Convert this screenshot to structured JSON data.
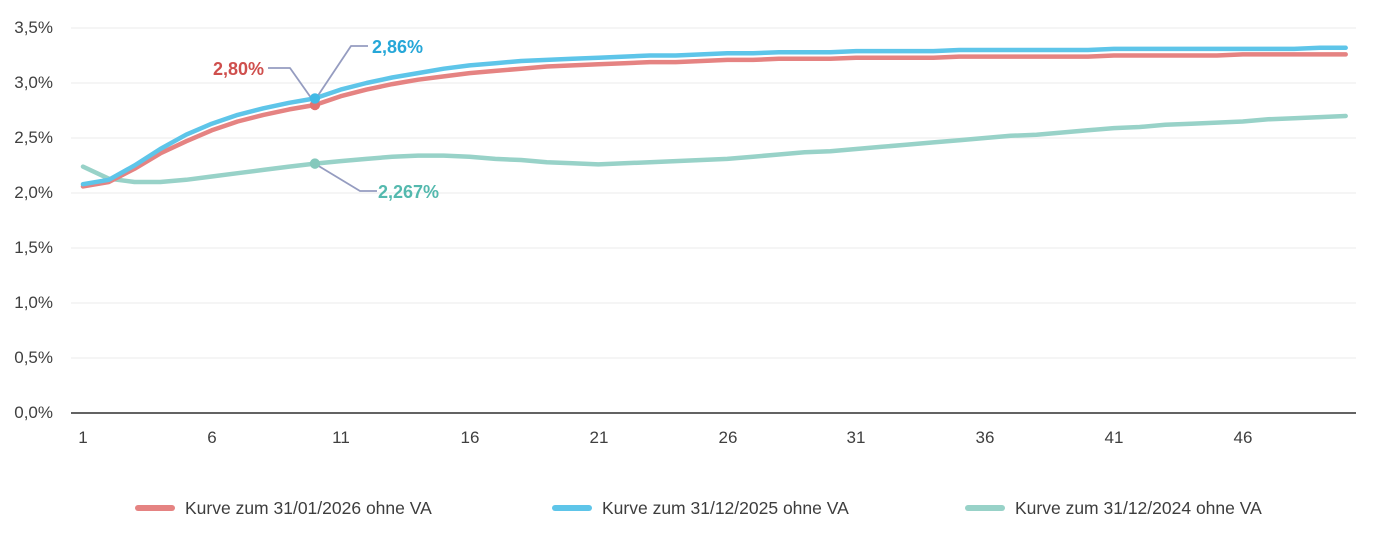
{
  "chart_data": {
    "type": "line",
    "title": "",
    "xlabel": "",
    "ylabel": "",
    "x": [
      1,
      2,
      3,
      4,
      5,
      6,
      7,
      8,
      9,
      10,
      11,
      12,
      13,
      14,
      15,
      16,
      17,
      18,
      19,
      20,
      21,
      22,
      23,
      24,
      25,
      26,
      27,
      28,
      29,
      30,
      31,
      32,
      33,
      34,
      35,
      36,
      37,
      38,
      39,
      40,
      41,
      42,
      43,
      44,
      45,
      46,
      47,
      48,
      49,
      50
    ],
    "xlim": [
      1,
      50
    ],
    "ylim": [
      0,
      3.5
    ],
    "grid": true,
    "legend_position": "bottom",
    "xticks": [
      "1",
      "6",
      "11",
      "16",
      "21",
      "26",
      "31",
      "36",
      "41",
      "46"
    ],
    "xtick_values": [
      1,
      6,
      11,
      16,
      21,
      26,
      31,
      36,
      41,
      46
    ],
    "yticks": [
      "3,5%",
      "3,0%",
      "2,5%",
      "2,0%",
      "1,5%",
      "1,0%",
      "0,5%",
      "0,0%"
    ],
    "ytick_values": [
      3.5,
      3.0,
      2.5,
      2.0,
      1.5,
      1.0,
      0.5,
      0.0
    ],
    "series": [
      {
        "name": "Kurve zum 31/01/2026 ohne VA",
        "color": "#e58382",
        "marker_color": "#e2716f",
        "values": [
          2.06,
          2.1,
          2.22,
          2.36,
          2.47,
          2.57,
          2.65,
          2.71,
          2.76,
          2.8,
          2.88,
          2.94,
          2.99,
          3.03,
          3.06,
          3.09,
          3.11,
          3.13,
          3.15,
          3.16,
          3.17,
          3.18,
          3.19,
          3.19,
          3.2,
          3.21,
          3.21,
          3.22,
          3.22,
          3.22,
          3.23,
          3.23,
          3.23,
          3.23,
          3.24,
          3.24,
          3.24,
          3.24,
          3.24,
          3.24,
          3.25,
          3.25,
          3.25,
          3.25,
          3.25,
          3.26,
          3.26,
          3.26,
          3.26,
          3.26
        ]
      },
      {
        "name": "Kurve zum 31/12/2025 ohne VA",
        "color": "#5ec5e9",
        "marker_color": "#41b9e5",
        "values": [
          2.08,
          2.12,
          2.25,
          2.4,
          2.53,
          2.63,
          2.71,
          2.77,
          2.82,
          2.86,
          2.94,
          3.0,
          3.05,
          3.09,
          3.13,
          3.16,
          3.18,
          3.2,
          3.21,
          3.22,
          3.23,
          3.24,
          3.25,
          3.25,
          3.26,
          3.27,
          3.27,
          3.28,
          3.28,
          3.28,
          3.29,
          3.29,
          3.29,
          3.29,
          3.3,
          3.3,
          3.3,
          3.3,
          3.3,
          3.3,
          3.31,
          3.31,
          3.31,
          3.31,
          3.31,
          3.31,
          3.31,
          3.31,
          3.32,
          3.32
        ]
      },
      {
        "name": "Kurve zum 31/12/2024 ohne VA",
        "color": "#98d2c8",
        "marker_color": "#85c8bc",
        "values": [
          2.24,
          2.13,
          2.1,
          2.1,
          2.12,
          2.15,
          2.18,
          2.21,
          2.24,
          2.267,
          2.29,
          2.31,
          2.33,
          2.34,
          2.34,
          2.33,
          2.31,
          2.3,
          2.28,
          2.27,
          2.26,
          2.27,
          2.28,
          2.29,
          2.3,
          2.31,
          2.33,
          2.35,
          2.37,
          2.38,
          2.4,
          2.42,
          2.44,
          2.46,
          2.48,
          2.5,
          2.52,
          2.53,
          2.55,
          2.57,
          2.59,
          2.6,
          2.62,
          2.63,
          2.64,
          2.65,
          2.67,
          2.68,
          2.69,
          2.7
        ]
      }
    ],
    "annotations": [
      {
        "series": 0,
        "text": "2,80%",
        "x": 10,
        "y": 2.8,
        "color": "#cf4f4d"
      },
      {
        "series": 1,
        "text": "2,86%",
        "x": 10,
        "y": 2.86,
        "color": "#26a7d8"
      },
      {
        "series": 2,
        "text": "2,267%",
        "x": 10,
        "y": 2.267,
        "color": "#54b9ae"
      }
    ],
    "colors": {
      "gridline": "#f2f2f2",
      "axis_line": "#4d4d4d",
      "tick_label": "#3f3f3f",
      "leader_line": "#959cc0"
    }
  }
}
